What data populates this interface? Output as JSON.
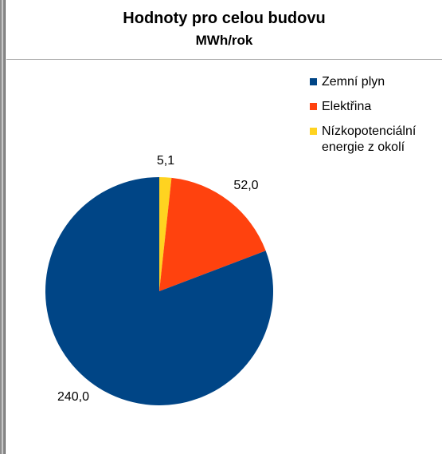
{
  "chart_data": {
    "type": "pie",
    "title": "Hodnoty pro celou budovu",
    "subtitle": "MWh/rok",
    "slices": [
      {
        "name": "Zemní plyn",
        "value": 240.0,
        "label": "240,0",
        "color": "#004586"
      },
      {
        "name": "Elektřina",
        "value": 52.0,
        "label": "52,0",
        "color": "#ff420e"
      },
      {
        "name": "Nízkopotenciální energie z okolí",
        "value": 5.1,
        "label": "5,1",
        "color": "#ffd320"
      }
    ],
    "legend": {
      "placement": "top-right",
      "entries": [
        {
          "label_line1": "Zemní plyn",
          "label_line2": "",
          "color": "#004586"
        },
        {
          "label_line1": "Elektřina",
          "label_line2": "",
          "color": "#ff420e"
        },
        {
          "label_line1": "Nízkopotenciální",
          "label_line2": "energie z okolí",
          "color": "#ffd320"
        }
      ]
    }
  }
}
